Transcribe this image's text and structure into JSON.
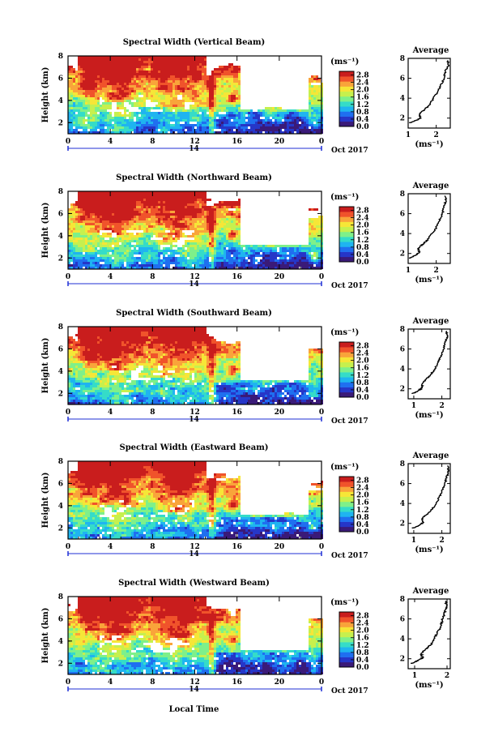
{
  "chart_data": {
    "type": "heatmap",
    "common": {
      "xlabel": "Local Time",
      "ylabel": "Height (km)",
      "x_ticks": [
        "0",
        "4",
        "8",
        "12",
        "16",
        "20",
        "0"
      ],
      "x_range": [
        0,
        24
      ],
      "y_ticks": [
        "2",
        "4",
        "6",
        "8"
      ],
      "y_range": [
        1,
        8
      ],
      "date_day": "14",
      "date_month_year": "Oct 2017",
      "colorbar_unit": "(ms⁻¹)",
      "colorbar_ticks": [
        "0.0",
        "0.4",
        "0.8",
        "1.2",
        "1.6",
        "2.0",
        "2.4",
        "2.8"
      ],
      "colorbar_range": [
        0,
        3.0
      ],
      "colorscale": [
        "#3a1a78",
        "#2636c8",
        "#1f6ff0",
        "#1fb4f0",
        "#35dcc8",
        "#7ef08a",
        "#c6f04e",
        "#f6e637",
        "#f9a43a",
        "#f0532b",
        "#c91d1d"
      ],
      "avg_title": "Average",
      "avg_xlabel": "(ms⁻¹)"
    },
    "panels": [
      {
        "title": "Spectral Width (Vertical Beam)",
        "avg_x_ticks": [
          "1",
          "2"
        ],
        "avg_x_range": [
          1,
          2.5
        ],
        "avg_profile": [
          [
            1.05,
            1.5
          ],
          [
            1.3,
            1.8
          ],
          [
            1.45,
            2.0
          ],
          [
            1.4,
            2.4
          ],
          [
            1.6,
            2.9
          ],
          [
            1.75,
            3.3
          ],
          [
            1.9,
            4.0
          ],
          [
            2.05,
            4.6
          ],
          [
            2.15,
            5.2
          ],
          [
            2.25,
            5.8
          ],
          [
            2.3,
            6.4
          ],
          [
            2.35,
            6.9
          ],
          [
            2.45,
            7.3
          ],
          [
            2.4,
            7.8
          ]
        ]
      },
      {
        "title": "Spectral Width (Northward Beam)",
        "avg_x_ticks": [
          "1",
          "2"
        ],
        "avg_x_range": [
          1,
          2.5
        ],
        "avg_profile": [
          [
            1.05,
            1.5
          ],
          [
            1.25,
            1.8
          ],
          [
            1.4,
            2.1
          ],
          [
            1.35,
            2.5
          ],
          [
            1.55,
            3.0
          ],
          [
            1.7,
            3.4
          ],
          [
            1.85,
            4.0
          ],
          [
            2.0,
            4.6
          ],
          [
            2.1,
            5.2
          ],
          [
            2.2,
            5.8
          ],
          [
            2.25,
            6.4
          ],
          [
            2.3,
            6.9
          ],
          [
            2.35,
            7.3
          ],
          [
            2.3,
            7.8
          ]
        ]
      },
      {
        "title": "Spectral Width (Southward Beam)",
        "avg_x_ticks": [
          "1",
          "2"
        ],
        "avg_x_range": [
          0.8,
          2.3
        ],
        "avg_profile": [
          [
            0.95,
            1.5
          ],
          [
            1.15,
            1.8
          ],
          [
            1.3,
            2.1
          ],
          [
            1.3,
            2.5
          ],
          [
            1.45,
            3.0
          ],
          [
            1.6,
            3.4
          ],
          [
            1.75,
            4.0
          ],
          [
            1.85,
            4.6
          ],
          [
            1.95,
            5.2
          ],
          [
            2.05,
            5.8
          ],
          [
            2.1,
            6.4
          ],
          [
            2.15,
            6.9
          ],
          [
            2.2,
            7.3
          ],
          [
            2.15,
            7.8
          ]
        ]
      },
      {
        "title": "Spectral Width (Eastward Beam)",
        "avg_x_ticks": [
          "1",
          "2"
        ],
        "avg_x_range": [
          0.8,
          2.3
        ],
        "avg_profile": [
          [
            0.95,
            1.5
          ],
          [
            1.2,
            1.8
          ],
          [
            1.35,
            2.1
          ],
          [
            1.3,
            2.5
          ],
          [
            1.5,
            3.0
          ],
          [
            1.65,
            3.4
          ],
          [
            1.8,
            4.0
          ],
          [
            1.9,
            4.6
          ],
          [
            2.0,
            5.2
          ],
          [
            2.1,
            5.8
          ],
          [
            2.15,
            6.4
          ],
          [
            2.2,
            6.9
          ],
          [
            2.25,
            7.3
          ],
          [
            2.2,
            7.8
          ]
        ]
      },
      {
        "title": "Spectral Width (Westward Beam)",
        "avg_x_ticks": [
          "1",
          "2"
        ],
        "avg_x_range": [
          0.8,
          2.1
        ],
        "avg_profile": [
          [
            0.9,
            1.5
          ],
          [
            1.1,
            1.8
          ],
          [
            1.25,
            2.1
          ],
          [
            1.2,
            2.5
          ],
          [
            1.35,
            3.0
          ],
          [
            1.5,
            3.4
          ],
          [
            1.6,
            4.0
          ],
          [
            1.7,
            4.6
          ],
          [
            1.8,
            5.2
          ],
          [
            1.85,
            5.8
          ],
          [
            1.9,
            6.4
          ],
          [
            1.95,
            6.9
          ],
          [
            2.0,
            7.3
          ],
          [
            1.95,
            7.8
          ]
        ]
      }
    ]
  }
}
